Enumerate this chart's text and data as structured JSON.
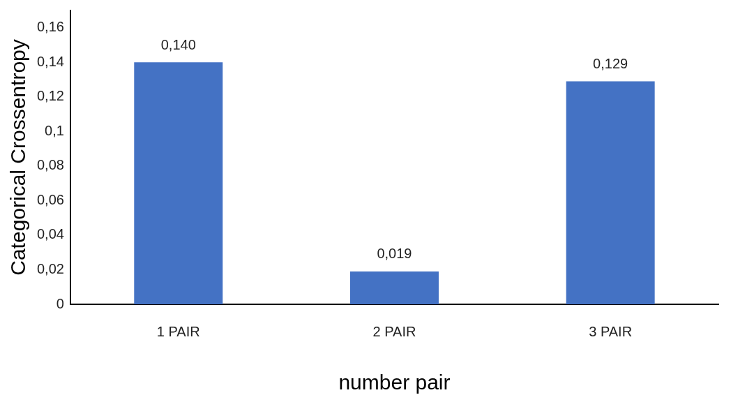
{
  "chart_data": {
    "type": "bar",
    "xlabel": "number pair",
    "ylabel": "Categorical Crossentropy",
    "categories": [
      "1 PAIR",
      "2 PAIR",
      "3 PAIR"
    ],
    "values": [
      0.14,
      0.019,
      0.129
    ],
    "value_labels": [
      "0,140",
      "0,019",
      "0,129"
    ],
    "color": "#4472c4",
    "ylim": [
      0,
      0.17
    ],
    "yticks": [
      0,
      {
        "value": 0.02,
        "label": "0,02"
      },
      {
        "value": 0.04,
        "label": "0,04"
      },
      {
        "value": 0.06,
        "label": "0,06"
      },
      {
        "value": 0.08,
        "label": "0,08"
      },
      {
        "value": 0.1,
        "label": "0,1"
      },
      {
        "value": 0.12,
        "label": "0,12"
      },
      {
        "value": 0.14,
        "label": "0,14"
      },
      {
        "value": 0.16,
        "label": "0,16"
      }
    ],
    "grid": false,
    "legend": false
  }
}
